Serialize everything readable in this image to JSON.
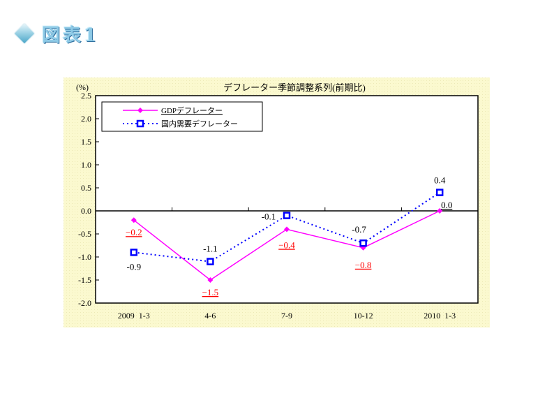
{
  "header": {
    "title": "図表1",
    "icon": "diamond-icon"
  },
  "colors": {
    "panel_bg": "#fbf9cf",
    "series1": "#ff00ff",
    "series2": "#0000ff",
    "neg_label": "#ff0000",
    "header_text": "#8ecae6"
  },
  "chart_data": {
    "type": "line",
    "title": "デフレーター季節調整系列(前期比)",
    "ylabel": "(%)",
    "xlabel": "",
    "categories": [
      "2009  1-3",
      "4-6",
      "7-9",
      "10-12",
      "2010  1-3"
    ],
    "ylim": [
      -2.0,
      2.5
    ],
    "yticks": [
      "2.5",
      "2.0",
      "1.5",
      "1.0",
      "0.5",
      "0.0",
      "-0.5",
      "-1.0",
      "-1.5",
      "-2.0"
    ],
    "series": [
      {
        "name": "GDPデフレーター",
        "values": [
          -0.2,
          -1.5,
          -0.4,
          -0.8,
          0.0
        ],
        "labels": [
          "−0.2",
          "−1.5",
          "−0.4",
          "−0.8",
          "0.0"
        ]
      },
      {
        "name": "国内需要デフレーター",
        "values": [
          -0.9,
          -1.1,
          -0.1,
          -0.7,
          0.4
        ],
        "labels": [
          "-0.9",
          "-1.1",
          "-0.1",
          "-0.7",
          "0.4"
        ]
      }
    ],
    "grid": false,
    "legend": "top-left"
  }
}
